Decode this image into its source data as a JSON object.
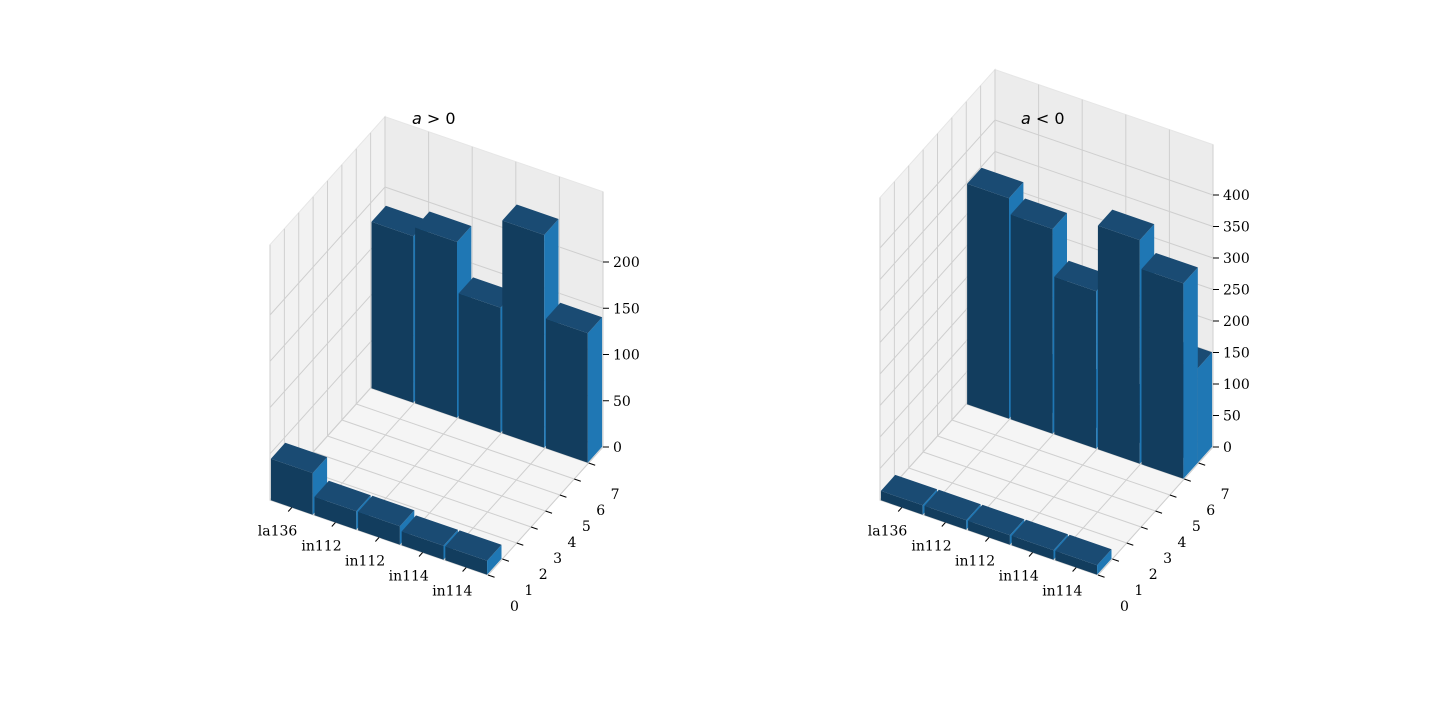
{
  "figure": {
    "background": "#ffffff"
  },
  "chart_data": [
    {
      "type": "bar3d",
      "title": "a > 0",
      "title_parts": {
        "italic": "a",
        "rest": " > 0"
      },
      "x_tick_labels": [
        "la136",
        "in112",
        "in112",
        "in114",
        "in114"
      ],
      "y_tick_labels": [
        "0",
        "1",
        "2",
        "3",
        "4",
        "5",
        "6",
        "7"
      ],
      "z_tick_labels": [
        "0",
        "50",
        "100",
        "150",
        "200"
      ],
      "zlim": [
        0,
        230
      ],
      "grid": true,
      "bar_colors": {
        "front": "#123d5e",
        "side": "#1f77b4",
        "top": "#1a4b73"
      },
      "rows": [
        {
          "y": 7,
          "values": [
            180,
            190,
            135,
            230,
            140
          ]
        },
        {
          "y": 0,
          "values": [
            45,
            20,
            20,
            15,
            15
          ]
        }
      ]
    },
    {
      "type": "bar3d",
      "title": "a < 0",
      "title_parts": {
        "italic": "a",
        "rest": " < 0"
      },
      "x_tick_labels": [
        "la136",
        "in112",
        "in112",
        "in114",
        "in114"
      ],
      "y_tick_labels": [
        "0",
        "1",
        "2",
        "3",
        "4",
        "5",
        "6",
        "7"
      ],
      "z_tick_labels": [
        "0",
        "50",
        "100",
        "150",
        "200",
        "250",
        "300",
        "350",
        "400"
      ],
      "zlim": [
        0,
        400
      ],
      "grid": true,
      "bar_colors": {
        "front": "#123d5e",
        "side": "#1f77b4",
        "top": "#1a4b73"
      },
      "rows": [
        {
          "y": 7,
          "values": [
            60,
            60,
            60,
            60,
            150
          ]
        },
        {
          "y": 6,
          "values": [
            350,
            325,
            250,
            355,
            310
          ]
        },
        {
          "y": 0,
          "values": [
            15,
            15,
            15,
            15,
            15
          ]
        }
      ]
    }
  ]
}
